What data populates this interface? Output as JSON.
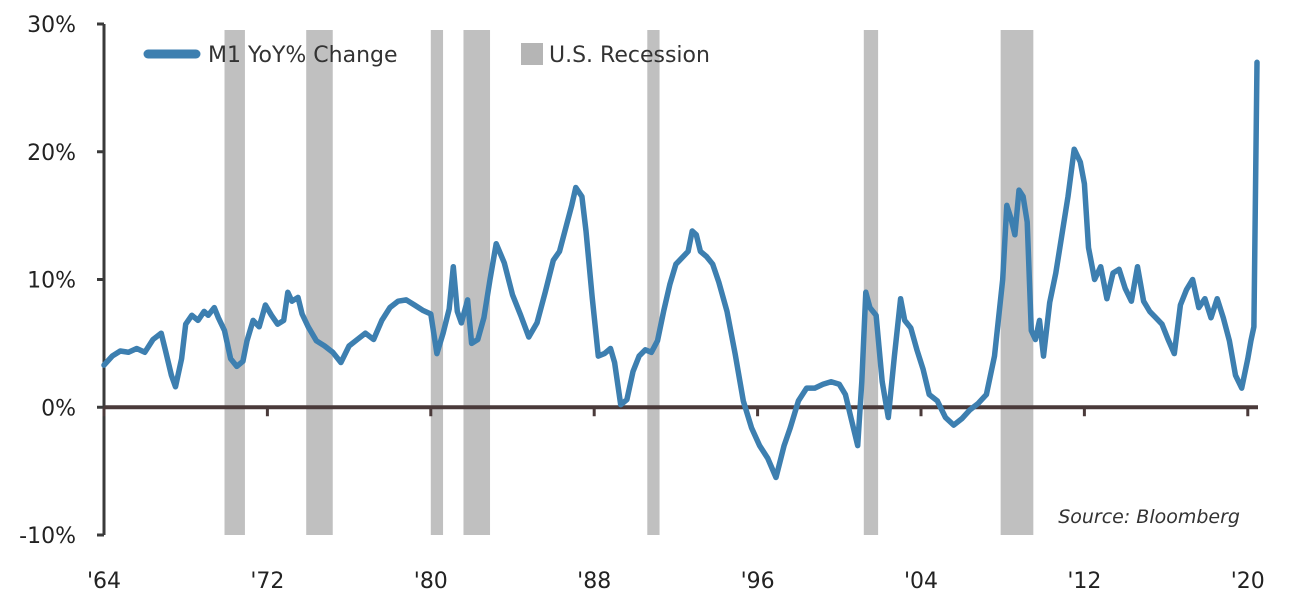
{
  "chart_data": {
    "type": "line",
    "title": "",
    "xlabel": "",
    "ylabel": "",
    "x_range": [
      1964,
      2020.5
    ],
    "ylim": [
      -10,
      30
    ],
    "y_ticks": [
      -10,
      0,
      10,
      20,
      30
    ],
    "y_tick_labels": [
      "-10%",
      "0%",
      "10%",
      "20%",
      "30%"
    ],
    "x_ticks": [
      1964,
      1972,
      1980,
      1988,
      1996,
      2004,
      2012,
      2020
    ],
    "x_tick_labels": [
      "'64",
      "'72",
      "'80",
      "'88",
      "'96",
      "'04",
      "'12",
      "'20"
    ],
    "grid": false,
    "legend": {
      "position": "top-left",
      "entries": [
        {
          "label": "M1 YoY% Change",
          "kind": "line",
          "color": "#3d7fb0"
        },
        {
          "label": "U.S. Recession",
          "kind": "box",
          "color": "#b5b5b5"
        }
      ]
    },
    "annotation": "Source: Bloomberg",
    "recessions": [
      [
        1969.9,
        1970.9
      ],
      [
        1973.9,
        1975.2
      ],
      [
        1980.0,
        1980.6
      ],
      [
        1981.6,
        1982.9
      ],
      [
        1990.6,
        1991.2
      ],
      [
        2001.2,
        2001.9
      ],
      [
        2007.9,
        2009.5
      ]
    ],
    "series": [
      {
        "name": "M1 YoY% Change",
        "color": "#3d7fb0",
        "x": [
          1964.0,
          1964.4,
          1964.8,
          1965.2,
          1965.6,
          1966.0,
          1966.4,
          1966.8,
          1967.0,
          1967.3,
          1967.5,
          1967.8,
          1968.0,
          1968.3,
          1968.6,
          1968.9,
          1969.1,
          1969.4,
          1969.6,
          1969.9,
          1970.2,
          1970.5,
          1970.8,
          1971.0,
          1971.3,
          1971.6,
          1971.9,
          1972.2,
          1972.5,
          1972.8,
          1973.0,
          1973.2,
          1973.5,
          1973.7,
          1974.0,
          1974.4,
          1974.8,
          1975.2,
          1975.6,
          1976.0,
          1976.4,
          1976.8,
          1977.2,
          1977.6,
          1978.0,
          1978.4,
          1978.8,
          1979.2,
          1979.6,
          1980.0,
          1980.3,
          1980.6,
          1980.9,
          1981.1,
          1981.3,
          1981.5,
          1981.8,
          1982.0,
          1982.3,
          1982.6,
          1982.9,
          1983.2,
          1983.6,
          1984.0,
          1984.4,
          1984.8,
          1985.2,
          1985.6,
          1986.0,
          1986.3,
          1986.6,
          1986.9,
          1987.1,
          1987.4,
          1987.6,
          1987.9,
          1988.2,
          1988.5,
          1988.8,
          1989.0,
          1989.3,
          1989.6,
          1989.9,
          1990.2,
          1990.5,
          1990.8,
          1991.1,
          1991.4,
          1991.7,
          1992.0,
          1992.3,
          1992.6,
          1992.8,
          1993.0,
          1993.2,
          1993.5,
          1993.8,
          1994.1,
          1994.5,
          1994.9,
          1995.3,
          1995.7,
          1996.1,
          1996.5,
          1996.9,
          1997.3,
          1997.6,
          1998.0,
          1998.4,
          1998.8,
          1999.2,
          1999.6,
          2000.0,
          2000.3,
          2000.6,
          2000.9,
          2001.1,
          2001.3,
          2001.5,
          2001.8,
          2002.1,
          2002.4,
          2002.7,
          2003.0,
          2003.2,
          2003.5,
          2003.8,
          2004.1,
          2004.4,
          2004.8,
          2005.2,
          2005.6,
          2006.0,
          2006.4,
          2006.8,
          2007.2,
          2007.6,
          2008.0,
          2008.2,
          2008.4,
          2008.6,
          2008.8,
          2009.0,
          2009.2,
          2009.4,
          2009.6,
          2009.8,
          2010.0,
          2010.3,
          2010.6,
          2010.9,
          2011.2,
          2011.5,
          2011.8,
          2012.0,
          2012.2,
          2012.5,
          2012.8,
          2013.1,
          2013.4,
          2013.7,
          2014.0,
          2014.3,
          2014.6,
          2014.9,
          2015.2,
          2015.5,
          2015.8,
          2016.1,
          2016.4,
          2016.7,
          2017.0,
          2017.3,
          2017.6,
          2017.9,
          2018.2,
          2018.5,
          2018.8,
          2019.1,
          2019.4,
          2019.7,
          2020.0,
          2020.15,
          2020.3,
          2020.45
        ],
        "y": [
          3.3,
          4.0,
          4.4,
          4.3,
          4.6,
          4.3,
          5.3,
          5.8,
          4.5,
          2.5,
          1.6,
          3.8,
          6.5,
          7.2,
          6.8,
          7.5,
          7.2,
          7.8,
          7.0,
          6.0,
          3.8,
          3.2,
          3.6,
          5.2,
          6.8,
          6.3,
          8.0,
          7.2,
          6.5,
          6.8,
          9.0,
          8.3,
          8.6,
          7.3,
          6.3,
          5.2,
          4.8,
          4.3,
          3.5,
          4.8,
          5.3,
          5.8,
          5.3,
          6.8,
          7.8,
          8.3,
          8.4,
          8.0,
          7.6,
          7.3,
          4.2,
          5.8,
          7.7,
          11.0,
          7.5,
          6.6,
          8.4,
          5.0,
          5.3,
          7.0,
          10.0,
          12.8,
          11.3,
          8.8,
          7.2,
          5.5,
          6.6,
          9.0,
          11.5,
          12.2,
          14.0,
          15.8,
          17.2,
          16.5,
          13.8,
          8.6,
          4.0,
          4.2,
          4.6,
          3.5,
          0.2,
          0.6,
          2.8,
          4.0,
          4.5,
          4.3,
          5.2,
          7.5,
          9.6,
          11.2,
          11.7,
          12.2,
          13.8,
          13.5,
          12.2,
          11.8,
          11.2,
          9.8,
          7.5,
          4.2,
          0.5,
          -1.6,
          -3.0,
          -4.0,
          -5.5,
          -3.0,
          -1.6,
          0.5,
          1.5,
          1.5,
          1.8,
          2.0,
          1.8,
          1.0,
          -1.0,
          -3.0,
          2.0,
          9.0,
          7.8,
          7.2,
          2.0,
          -0.8,
          4.0,
          8.5,
          6.8,
          6.2,
          4.5,
          3.0,
          1.0,
          0.5,
          -0.8,
          -1.4,
          -0.9,
          -0.2,
          0.3,
          1.0,
          4.0,
          10.0,
          15.8,
          14.8,
          13.5,
          17.0,
          16.5,
          14.5,
          6.0,
          5.3,
          6.8,
          4.0,
          8.2,
          10.5,
          13.5,
          16.5,
          20.2,
          19.2,
          17.5,
          12.5,
          10.0,
          11.0,
          8.5,
          10.5,
          10.8,
          9.3,
          8.3,
          11.0,
          8.3,
          7.5,
          7.0,
          6.5,
          5.3,
          4.2,
          8.0,
          9.2,
          10.0,
          7.8,
          8.5,
          7.0,
          8.5,
          7.0,
          5.2,
          2.5,
          1.5,
          3.8,
          5.2,
          6.3,
          27.0
        ]
      }
    ]
  }
}
